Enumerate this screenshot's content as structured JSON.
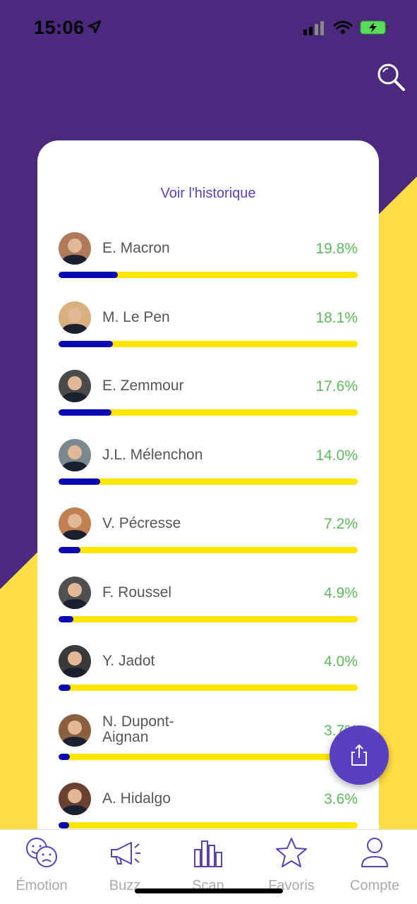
{
  "status": {
    "time": "15:06"
  },
  "card": {
    "history_link": "Voir l'historique"
  },
  "candidates": [
    {
      "name": "E. Macron",
      "pct": "19.8%",
      "value": 19.8
    },
    {
      "name": "M. Le Pen",
      "pct": "18.1%",
      "value": 18.1
    },
    {
      "name": "E. Zemmour",
      "pct": "17.6%",
      "value": 17.6
    },
    {
      "name": "J.L. Mélenchon",
      "pct": "14.0%",
      "value": 14.0
    },
    {
      "name": "V. Pécresse",
      "pct": "7.2%",
      "value": 7.2
    },
    {
      "name": "F. Roussel",
      "pct": "4.9%",
      "value": 4.9
    },
    {
      "name": "Y. Jadot",
      "pct": "4.0%",
      "value": 4.0
    },
    {
      "name": "N. Dupont-\nAignan",
      "pct": "3.7%",
      "value": 3.7
    },
    {
      "name": "A. Hidalgo",
      "pct": "3.6%",
      "value": 3.6
    }
  ],
  "tabs": [
    {
      "label": "Émotion",
      "icon": "emotion-faces-icon"
    },
    {
      "label": "Buzz",
      "icon": "megaphone-icon"
    },
    {
      "label": "Scan",
      "icon": "bar-chart-icon"
    },
    {
      "label": "Favoris",
      "icon": "star-icon"
    },
    {
      "label": "Compte",
      "icon": "user-icon"
    }
  ],
  "colors": {
    "purple": "#4b2a7e",
    "yellow": "#ffe600",
    "accent": "#5a3fb7",
    "fill": "#0a0ab5",
    "green": "#5cb85c"
  }
}
